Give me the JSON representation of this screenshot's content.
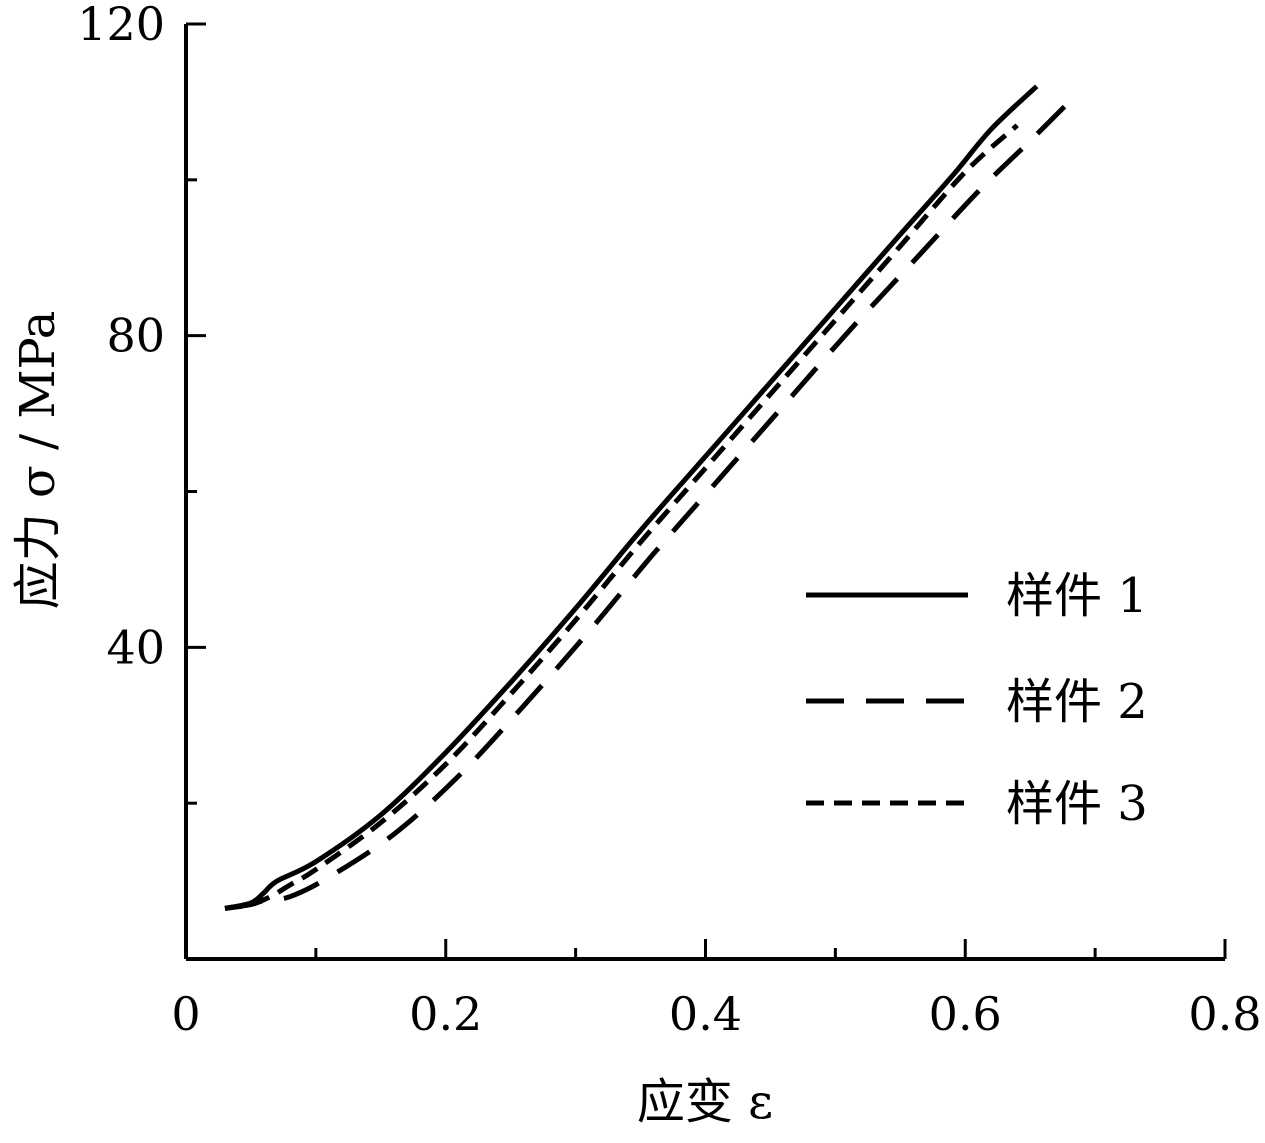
{
  "chart_data": {
    "type": "line",
    "xlabel": "应变 ε",
    "ylabel": "应力 σ / MPa",
    "xlim": [
      0,
      0.8
    ],
    "ylim": [
      0,
      120
    ],
    "x_ticks": [
      0,
      0.2,
      0.4,
      0.6,
      0.8
    ],
    "x_tick_labels": [
      "0",
      "0.2",
      "0.4",
      "0.6",
      "0.8"
    ],
    "y_ticks": [
      40,
      80,
      120
    ],
    "y_tick_labels": [
      "40",
      "80",
      "120"
    ],
    "grid": false,
    "legend_position": "right",
    "series": [
      {
        "name": "样件 1",
        "line_style": "solid",
        "x": [
          0.03,
          0.05,
          0.06,
          0.07,
          0.1,
          0.15,
          0.2,
          0.25,
          0.3,
          0.35,
          0.4,
          0.45,
          0.5,
          0.55,
          0.59,
          0.62,
          0.655
        ],
        "y": [
          6.5,
          7.2,
          8.5,
          10.0,
          12.5,
          18.5,
          26.5,
          35.5,
          45.0,
          55.0,
          64.5,
          74.0,
          83.5,
          93.0,
          100.5,
          106.5,
          112.0
        ]
      },
      {
        "name": "样件 2",
        "line_style": "long-dash",
        "x": [
          0.03,
          0.05,
          0.06,
          0.08,
          0.11,
          0.16,
          0.21,
          0.26,
          0.31,
          0.36,
          0.41,
          0.46,
          0.51,
          0.56,
          0.61,
          0.65,
          0.68
        ],
        "y": [
          6.5,
          7.0,
          7.5,
          8.0,
          10.5,
          16.0,
          23.5,
          32.5,
          42.0,
          52.0,
          61.5,
          71.0,
          80.5,
          89.5,
          98.5,
          105.0,
          110.0
        ]
      },
      {
        "name": "样件 3",
        "line_style": "short-dash",
        "x": [
          0.03,
          0.05,
          0.065,
          0.08,
          0.1,
          0.15,
          0.2,
          0.25,
          0.3,
          0.35,
          0.4,
          0.45,
          0.5,
          0.55,
          0.6,
          0.64
        ],
        "y": [
          6.5,
          7.0,
          8.0,
          9.5,
          11.5,
          17.5,
          25.0,
          34.0,
          43.5,
          53.5,
          63.0,
          72.5,
          82.0,
          91.5,
          101.0,
          107.0
        ]
      }
    ]
  }
}
